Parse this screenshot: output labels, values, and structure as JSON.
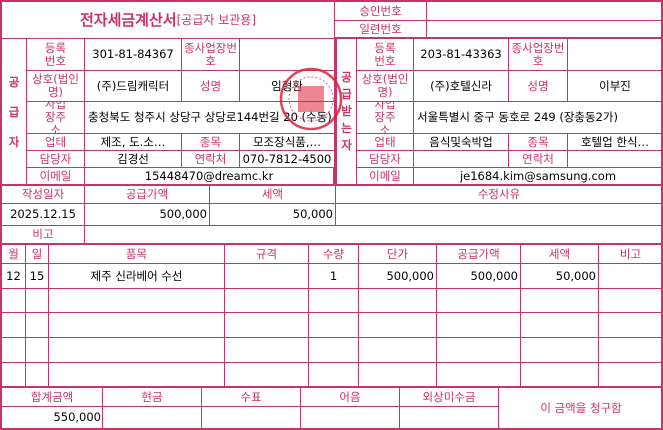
{
  "header": {
    "title": "전자세금계산서",
    "subtitle": "[공급자 보관용]",
    "approval_label": "승인번호",
    "approval_value": "",
    "serial_label": "일련번호",
    "serial_value": ""
  },
  "labels": {
    "reg_no": "등록번호",
    "sub_biz_no": "종사업장번호",
    "company": "상호(법인명)",
    "ceo": "성명",
    "address": "사업장주소",
    "biz_type": "업태",
    "biz_item": "종목",
    "manager": "담당자",
    "contact": "연락처",
    "email": "이메일"
  },
  "supplier": {
    "side_label": "공급자",
    "reg_no": "301-81-84367",
    "sub_biz_no": "",
    "company": "(주)드림캐릭터",
    "ceo": "임형환",
    "address": "충청북도 청주시 상당구 상당로144번길 20 (수동)",
    "biz_type": "제조, 도.소…",
    "biz_item": "모조장식품,…",
    "manager": "김경선",
    "contact": "070-7812-4500",
    "email": "15448470@dreamc.kr"
  },
  "buyer": {
    "side_label": "공급받는자",
    "reg_no": "203-81-43363",
    "sub_biz_no": "",
    "company": "(주)호텔신라",
    "ceo": "이부진",
    "address": "서울특별시 중구 동호로 249 (장충동2가)",
    "biz_type": "음식및숙박업",
    "biz_item": "호텔업 한식…",
    "manager": "",
    "contact": "",
    "email": "je1684.kim@samsung.com"
  },
  "summary": {
    "date_label": "작성일자",
    "supply_label": "공급가액",
    "tax_label": "세액",
    "reason_label": "수정사유",
    "date": "2025.12.15",
    "supply": "500,000",
    "tax": "50,000",
    "reason": "",
    "note_label": "비고",
    "note": ""
  },
  "items": {
    "headers": [
      "월",
      "일",
      "품목",
      "규격",
      "수량",
      "단가",
      "공급가액",
      "세액",
      "비고"
    ],
    "rows": [
      [
        "12",
        "15",
        "제주 신라베어 수선",
        "",
        "1",
        "500,000",
        "500,000",
        "50,000",
        ""
      ],
      [
        "",
        "",
        "",
        "",
        "",
        "",
        "",
        "",
        ""
      ],
      [
        "",
        "",
        "",
        "",
        "",
        "",
        "",
        "",
        ""
      ],
      [
        "",
        "",
        "",
        "",
        "",
        "",
        "",
        "",
        ""
      ],
      [
        "",
        "",
        "",
        "",
        "",
        "",
        "",
        "",
        ""
      ]
    ]
  },
  "footer": {
    "total_label": "합계금액",
    "cash_label": "현금",
    "check_label": "수표",
    "note_label": "어음",
    "credit_label": "외상미수금",
    "total": "550,000",
    "cash": "",
    "check": "",
    "bill": "",
    "credit": "",
    "claim_text": "이 금액을 청구함"
  },
  "colors": {
    "accent": "#c8336a",
    "stamp": "#e0203a"
  }
}
